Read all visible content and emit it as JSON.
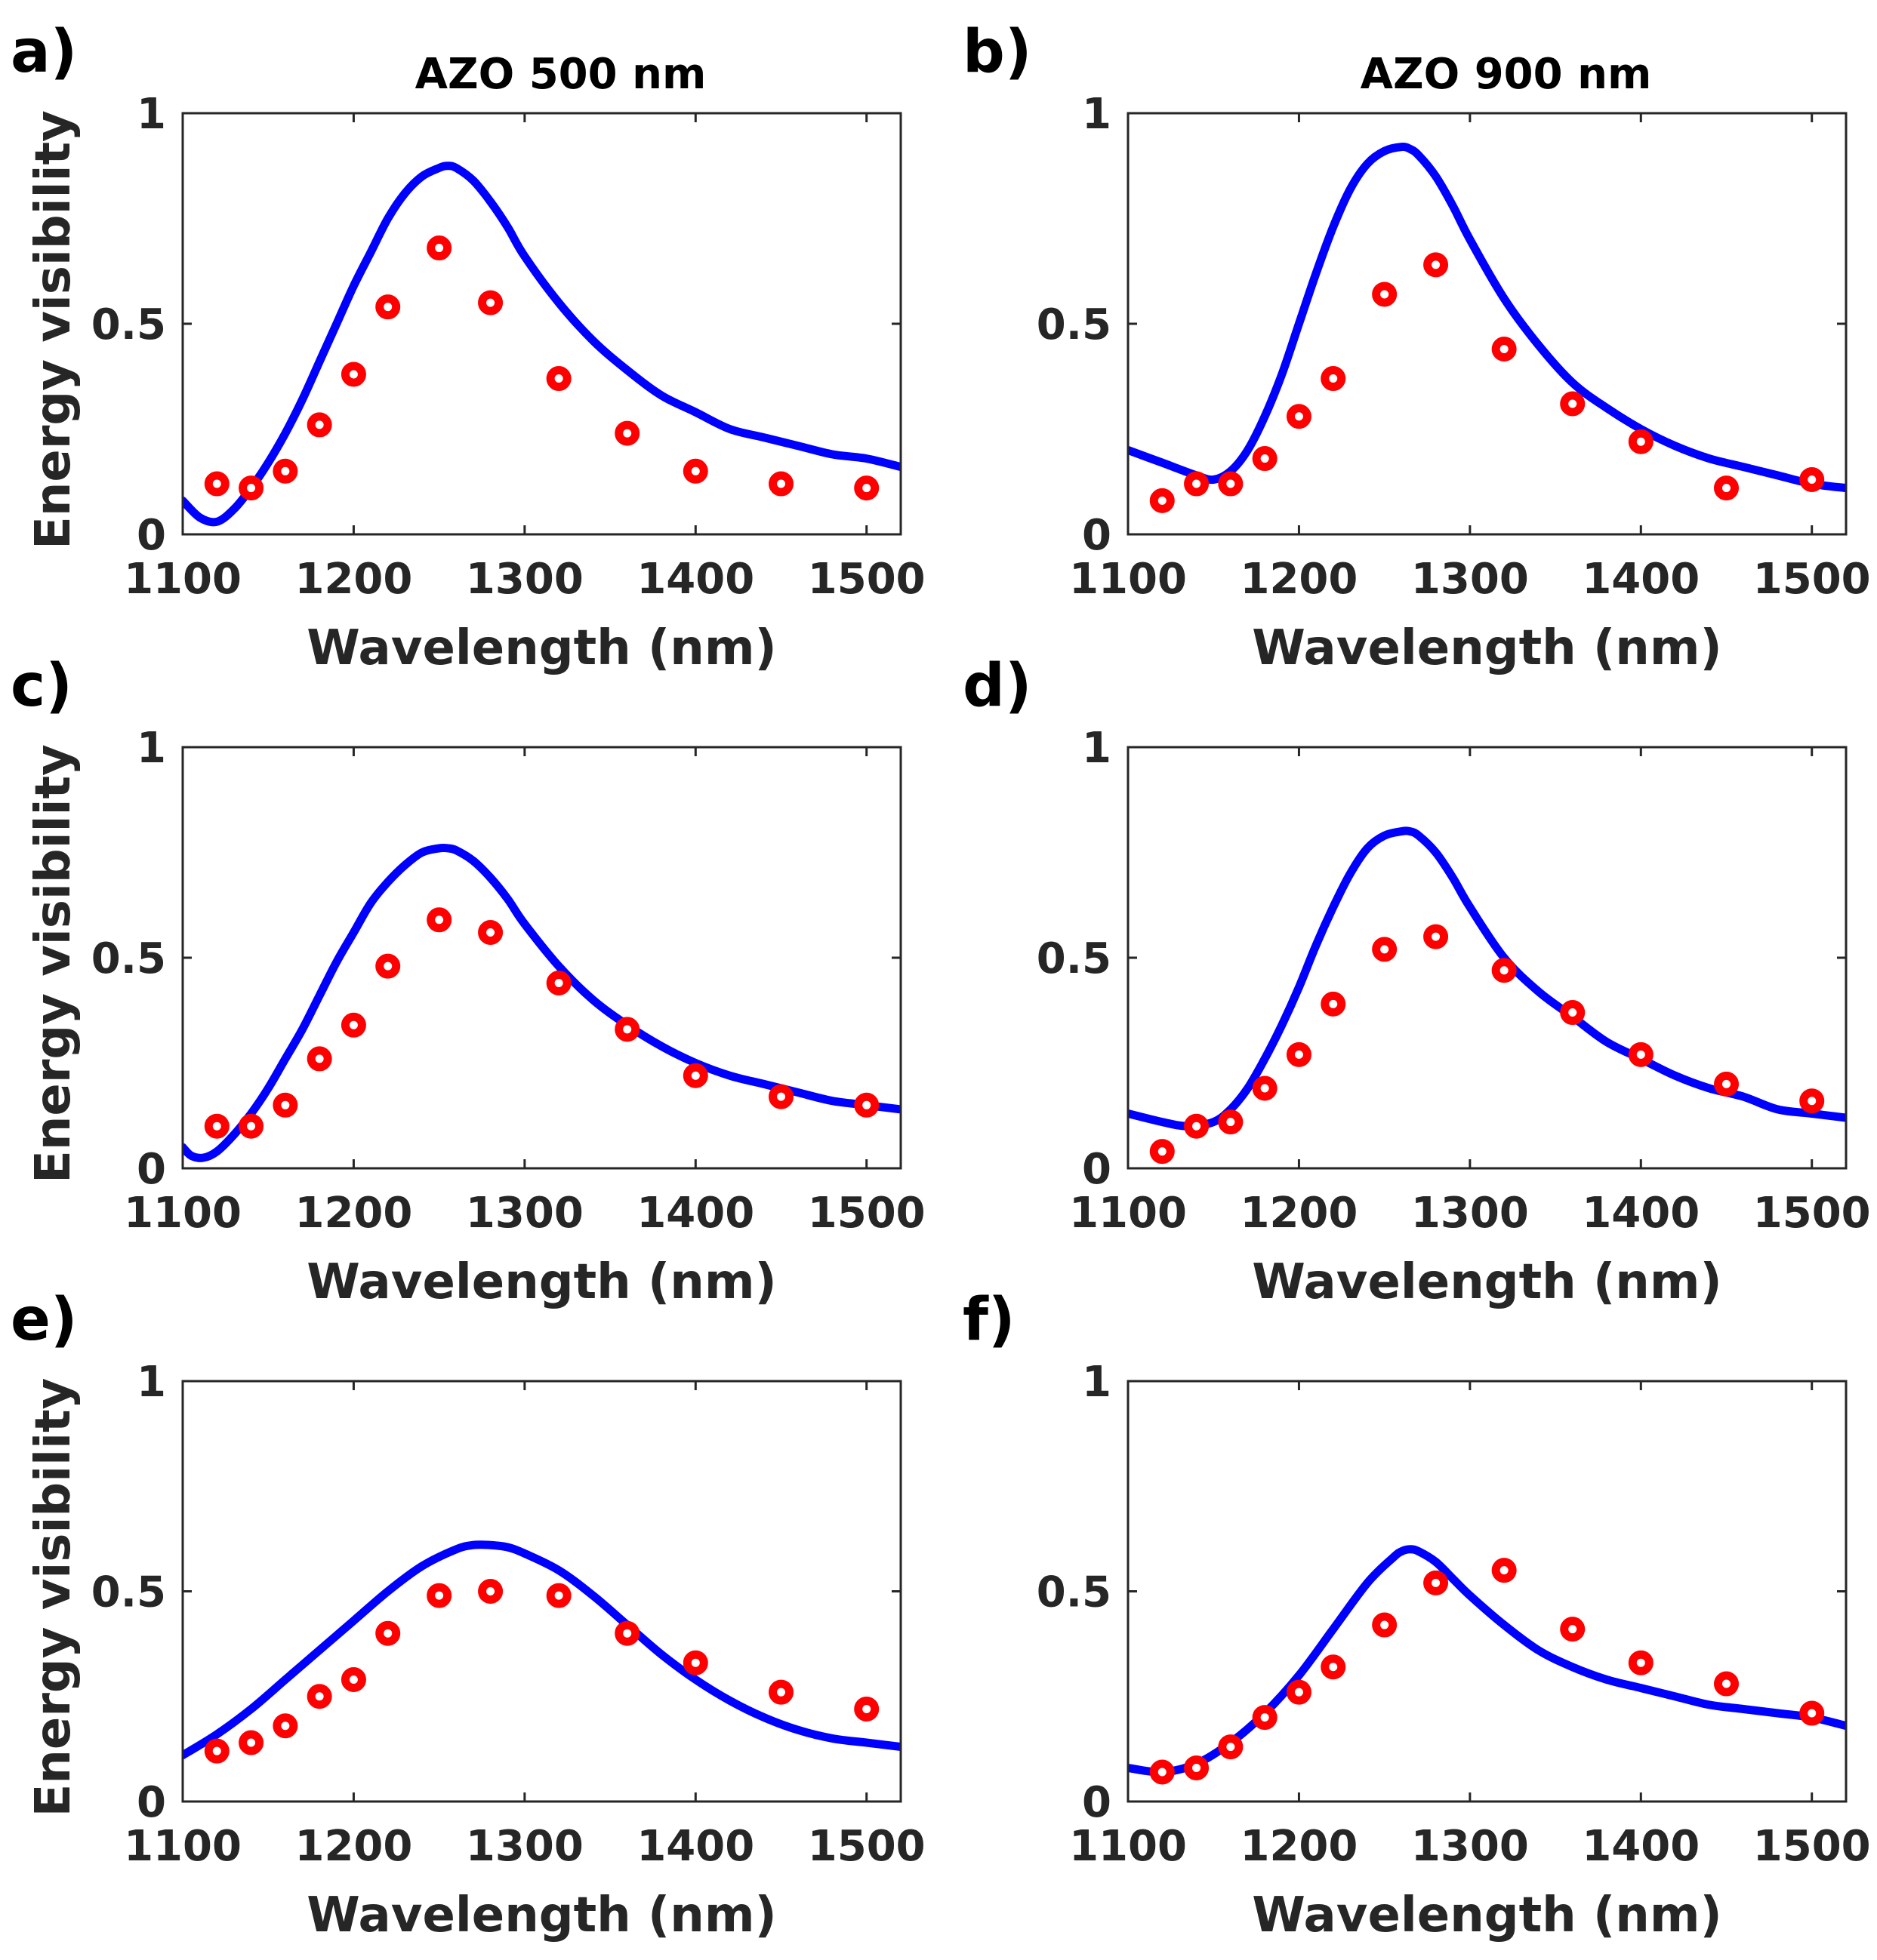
{
  "colors": {
    "curve": "#0000ff",
    "marker": "#ff0000",
    "axis": "#262626",
    "background": "#ffffff"
  },
  "column_titles": [
    "AZO 500 nm",
    "AZO 900 nm"
  ],
  "chart_data": [
    {
      "id": "a",
      "panel_label": "a)",
      "type": "line+scatter",
      "title": "AZO 500 nm",
      "xlabel": "Wavelength (nm)",
      "ylabel": "Energy visibility",
      "xlim": [
        1100,
        1520
      ],
      "ylim": [
        0,
        1
      ],
      "xticks": [
        "1100",
        "1200",
        "1300",
        "1400",
        "1500"
      ],
      "yticks": [
        "0",
        "0.5",
        "1"
      ],
      "line": {
        "x": [
          1100,
          1110,
          1120,
          1130,
          1140,
          1150,
          1160,
          1170,
          1180,
          1190,
          1200,
          1210,
          1220,
          1230,
          1240,
          1250,
          1255,
          1260,
          1270,
          1280,
          1290,
          1300,
          1320,
          1340,
          1360,
          1380,
          1400,
          1420,
          1440,
          1460,
          1480,
          1500,
          1520
        ],
        "y": [
          0.08,
          0.04,
          0.03,
          0.06,
          0.11,
          0.17,
          0.24,
          0.32,
          0.41,
          0.5,
          0.59,
          0.67,
          0.75,
          0.81,
          0.85,
          0.87,
          0.875,
          0.87,
          0.84,
          0.79,
          0.73,
          0.66,
          0.55,
          0.46,
          0.39,
          0.33,
          0.29,
          0.25,
          0.23,
          0.21,
          0.19,
          0.18,
          0.16
        ]
      },
      "points": {
        "x": [
          1120,
          1140,
          1160,
          1180,
          1200,
          1220,
          1250,
          1280,
          1320,
          1360,
          1400,
          1450,
          1500
        ],
        "y": [
          0.12,
          0.11,
          0.15,
          0.26,
          0.38,
          0.54,
          0.68,
          0.55,
          0.37,
          0.24,
          0.15,
          0.12,
          0.11
        ]
      }
    },
    {
      "id": "b",
      "panel_label": "b)",
      "type": "line+scatter",
      "title": "AZO 900 nm",
      "xlabel": "Wavelength (nm)",
      "ylabel": "",
      "xlim": [
        1100,
        1520
      ],
      "ylim": [
        0,
        1
      ],
      "xticks": [
        "1100",
        "1200",
        "1300",
        "1400",
        "1500"
      ],
      "yticks": [
        "0",
        "0.5",
        "1"
      ],
      "line": {
        "x": [
          1100,
          1120,
          1140,
          1150,
          1160,
          1170,
          1180,
          1190,
          1200,
          1210,
          1220,
          1230,
          1240,
          1250,
          1260,
          1265,
          1270,
          1280,
          1290,
          1300,
          1320,
          1340,
          1360,
          1380,
          1400,
          1420,
          1440,
          1460,
          1480,
          1500,
          1520
        ],
        "y": [
          0.2,
          0.17,
          0.14,
          0.13,
          0.15,
          0.2,
          0.28,
          0.38,
          0.5,
          0.62,
          0.73,
          0.82,
          0.88,
          0.91,
          0.92,
          0.915,
          0.9,
          0.85,
          0.78,
          0.7,
          0.56,
          0.45,
          0.36,
          0.3,
          0.25,
          0.21,
          0.18,
          0.16,
          0.14,
          0.12,
          0.11
        ]
      },
      "points": {
        "x": [
          1120,
          1140,
          1160,
          1180,
          1200,
          1220,
          1250,
          1280,
          1320,
          1360,
          1400,
          1450,
          1500
        ],
        "y": [
          0.08,
          0.12,
          0.12,
          0.18,
          0.28,
          0.37,
          0.57,
          0.64,
          0.44,
          0.31,
          0.22,
          0.11,
          0.13
        ]
      }
    },
    {
      "id": "c",
      "panel_label": "c)",
      "type": "line+scatter",
      "title": "",
      "xlabel": "Wavelength (nm)",
      "ylabel": "Energy visibility",
      "xlim": [
        1100,
        1520
      ],
      "ylim": [
        0,
        1
      ],
      "xticks": [
        "1100",
        "1200",
        "1300",
        "1400",
        "1500"
      ],
      "yticks": [
        "0",
        "0.5",
        "1"
      ],
      "line": {
        "x": [
          1100,
          1105,
          1112,
          1120,
          1130,
          1140,
          1150,
          1160,
          1170,
          1180,
          1190,
          1200,
          1210,
          1220,
          1230,
          1240,
          1250,
          1255,
          1260,
          1270,
          1280,
          1290,
          1300,
          1320,
          1340,
          1360,
          1380,
          1400,
          1420,
          1440,
          1460,
          1480,
          1500,
          1520
        ],
        "y": [
          0.05,
          0.03,
          0.025,
          0.04,
          0.08,
          0.13,
          0.19,
          0.26,
          0.33,
          0.41,
          0.49,
          0.56,
          0.63,
          0.68,
          0.72,
          0.75,
          0.76,
          0.76,
          0.755,
          0.73,
          0.69,
          0.64,
          0.58,
          0.48,
          0.4,
          0.34,
          0.29,
          0.25,
          0.22,
          0.2,
          0.18,
          0.16,
          0.15,
          0.14
        ]
      },
      "points": {
        "x": [
          1120,
          1140,
          1160,
          1180,
          1200,
          1220,
          1250,
          1280,
          1320,
          1360,
          1400,
          1450,
          1500
        ],
        "y": [
          0.1,
          0.1,
          0.15,
          0.26,
          0.34,
          0.48,
          0.59,
          0.56,
          0.44,
          0.33,
          0.22,
          0.17,
          0.15
        ]
      }
    },
    {
      "id": "d",
      "panel_label": "d)",
      "type": "line+scatter",
      "title": "",
      "xlabel": "Wavelength (nm)",
      "ylabel": "",
      "xlim": [
        1100,
        1520
      ],
      "ylim": [
        0,
        1
      ],
      "xticks": [
        "1100",
        "1200",
        "1300",
        "1400",
        "1500"
      ],
      "yticks": [
        "0",
        "0.5",
        "1"
      ],
      "line": {
        "x": [
          1100,
          1120,
          1135,
          1150,
          1160,
          1170,
          1180,
          1190,
          1200,
          1210,
          1220,
          1230,
          1240,
          1250,
          1260,
          1265,
          1270,
          1280,
          1290,
          1300,
          1320,
          1340,
          1360,
          1380,
          1400,
          1420,
          1440,
          1460,
          1480,
          1500,
          1520
        ],
        "y": [
          0.13,
          0.11,
          0.1,
          0.11,
          0.14,
          0.19,
          0.26,
          0.34,
          0.43,
          0.53,
          0.62,
          0.7,
          0.76,
          0.79,
          0.8,
          0.8,
          0.79,
          0.75,
          0.69,
          0.62,
          0.5,
          0.42,
          0.36,
          0.3,
          0.26,
          0.22,
          0.19,
          0.17,
          0.14,
          0.13,
          0.12
        ]
      },
      "points": {
        "x": [
          1120,
          1140,
          1160,
          1180,
          1200,
          1220,
          1250,
          1280,
          1320,
          1360,
          1400,
          1450,
          1500
        ],
        "y": [
          0.04,
          0.1,
          0.11,
          0.19,
          0.27,
          0.39,
          0.52,
          0.55,
          0.47,
          0.37,
          0.27,
          0.2,
          0.16
        ]
      }
    },
    {
      "id": "e",
      "panel_label": "e)",
      "type": "line+scatter",
      "title": "",
      "xlabel": "Wavelength (nm)",
      "ylabel": "Energy visibility",
      "xlim": [
        1100,
        1520
      ],
      "ylim": [
        0,
        1
      ],
      "xticks": [
        "1100",
        "1200",
        "1300",
        "1400",
        "1500"
      ],
      "yticks": [
        "0",
        "0.5",
        "1"
      ],
      "line": {
        "x": [
          1100,
          1120,
          1140,
          1160,
          1180,
          1200,
          1220,
          1240,
          1260,
          1270,
          1280,
          1290,
          1300,
          1320,
          1340,
          1360,
          1380,
          1400,
          1420,
          1440,
          1460,
          1480,
          1500,
          1520
        ],
        "y": [
          0.11,
          0.16,
          0.22,
          0.29,
          0.36,
          0.43,
          0.5,
          0.56,
          0.6,
          0.61,
          0.61,
          0.605,
          0.59,
          0.55,
          0.49,
          0.42,
          0.35,
          0.29,
          0.24,
          0.2,
          0.17,
          0.15,
          0.14,
          0.13
        ]
      },
      "points": {
        "x": [
          1120,
          1140,
          1160,
          1180,
          1200,
          1220,
          1250,
          1280,
          1320,
          1360,
          1400,
          1450,
          1500
        ],
        "y": [
          0.12,
          0.14,
          0.18,
          0.25,
          0.29,
          0.4,
          0.49,
          0.5,
          0.49,
          0.4,
          0.33,
          0.26,
          0.22
        ]
      }
    },
    {
      "id": "f",
      "panel_label": "f)",
      "type": "line+scatter",
      "title": "",
      "xlabel": "Wavelength (nm)",
      "ylabel": "",
      "xlim": [
        1100,
        1520
      ],
      "ylim": [
        0,
        1
      ],
      "xticks": [
        "1100",
        "1200",
        "1300",
        "1400",
        "1500"
      ],
      "yticks": [
        "0",
        "0.5",
        "1"
      ],
      "line": {
        "x": [
          1100,
          1120,
          1140,
          1160,
          1180,
          1200,
          1220,
          1240,
          1255,
          1260,
          1265,
          1270,
          1280,
          1290,
          1300,
          1320,
          1340,
          1360,
          1380,
          1400,
          1420,
          1440,
          1460,
          1480,
          1500,
          1520
        ],
        "y": [
          0.08,
          0.07,
          0.09,
          0.14,
          0.21,
          0.3,
          0.41,
          0.52,
          0.58,
          0.595,
          0.6,
          0.595,
          0.57,
          0.53,
          0.49,
          0.42,
          0.36,
          0.32,
          0.29,
          0.27,
          0.25,
          0.23,
          0.22,
          0.21,
          0.2,
          0.18
        ]
      },
      "points": {
        "x": [
          1120,
          1140,
          1160,
          1180,
          1200,
          1220,
          1250,
          1280,
          1320,
          1360,
          1400,
          1450,
          1500
        ],
        "y": [
          0.07,
          0.08,
          0.13,
          0.2,
          0.26,
          0.32,
          0.42,
          0.52,
          0.55,
          0.41,
          0.33,
          0.28,
          0.21
        ]
      }
    }
  ]
}
